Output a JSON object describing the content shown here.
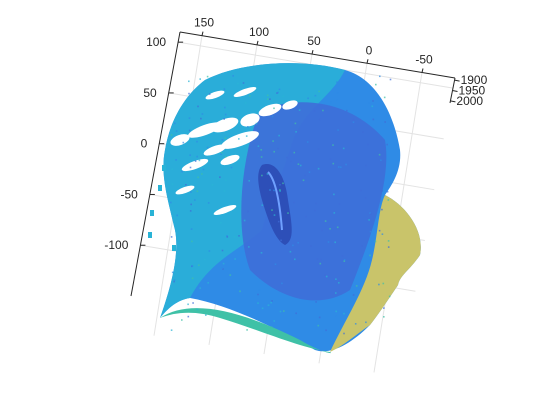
{
  "chart_data": {
    "type": "scatter",
    "subtype": "3d-point-cloud",
    "title": "",
    "xlabel": "",
    "ylabel": "",
    "zlabel": "",
    "grid": true,
    "colormap": "parula",
    "x_ticks": [
      150,
      100,
      50,
      0,
      -50
    ],
    "y_ticks": [
      100,
      50,
      0,
      -50,
      -100
    ],
    "z_ticks": [
      1900,
      1950,
      2000
    ],
    "xlim": [
      170,
      -80
    ],
    "ylim": [
      -150,
      110
    ],
    "zlim": [
      1890,
      2010
    ],
    "colors": {
      "far": "#3e6ed8",
      "mid": "#2f8be6",
      "near": "#29b3d6",
      "nearer": "#3fc1a7",
      "nearest": "#c9c46a"
    }
  }
}
